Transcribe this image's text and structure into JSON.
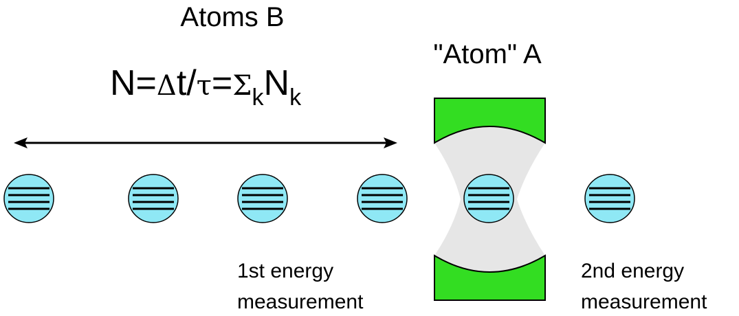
{
  "labels": {
    "atoms_b": "Atoms B",
    "formula": {
      "prefix": "N=",
      "delta": "Δ",
      "t_over": "t/",
      "tau": "τ",
      "equals": "=",
      "sigma": "Σ",
      "sub_k1": "k",
      "n": "N",
      "sub_k2": "k"
    },
    "atom_a": "\"Atom\" A",
    "first_measurement": [
      "1st energy",
      "measurement"
    ],
    "second_measurement": [
      "2nd energy",
      "measurement"
    ]
  },
  "atoms": {
    "count": 6,
    "levels_per_atom": 4
  },
  "colors": {
    "atom_fill": "#8fe8f5",
    "mirror_fill": "#33dd22",
    "cavity_fill": "#e6e6e6",
    "line": "#000000"
  }
}
